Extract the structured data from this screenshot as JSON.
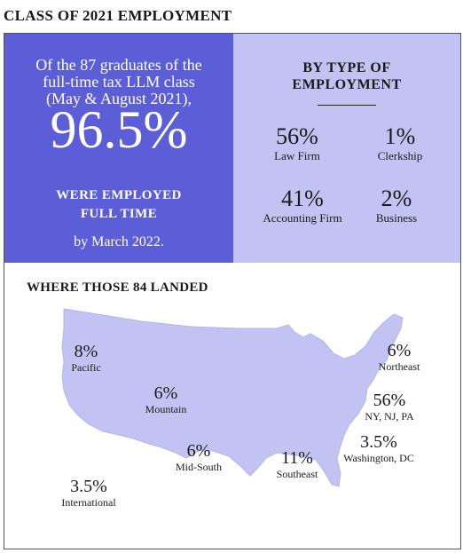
{
  "title": "CLASS OF 2021 EMPLOYMENT",
  "summary": {
    "intro_line1": "Of the 87 graduates of the",
    "intro_line2": "full-time tax LLM class",
    "intro_line3": "(May & August 2021),",
    "percent": "96.5%",
    "employed_line1": "WERE EMPLOYED",
    "employed_line2": "FULL TIME",
    "date": "by March 2022."
  },
  "by_type": {
    "heading_line1": "BY TYPE OF",
    "heading_line2": "EMPLOYMENT",
    "items": [
      {
        "percent": "56%",
        "label": "Law Firm"
      },
      {
        "percent": "1%",
        "label": "Clerkship"
      },
      {
        "percent": "41%",
        "label": "Accounting Firm"
      },
      {
        "percent": "2%",
        "label": "Business"
      }
    ]
  },
  "map": {
    "heading": "WHERE THOSE 84 LANDED",
    "fill_color": "#c2c3f2",
    "regions": [
      {
        "percent": "8%",
        "label": "Pacific"
      },
      {
        "percent": "6%",
        "label": "Mountain"
      },
      {
        "percent": "6%",
        "label": "Mid-South"
      },
      {
        "percent": "11%",
        "label": "Southeast"
      },
      {
        "percent": "6%",
        "label": "Northeast"
      },
      {
        "percent": "56%",
        "label": "NY, NJ, PA"
      },
      {
        "percent": "3.5%",
        "label": "Washington, DC"
      },
      {
        "percent": "3.5%",
        "label": "International"
      }
    ]
  },
  "colors": {
    "summary_bg": "#5b5ed6",
    "type_bg": "#c2c3f2"
  }
}
